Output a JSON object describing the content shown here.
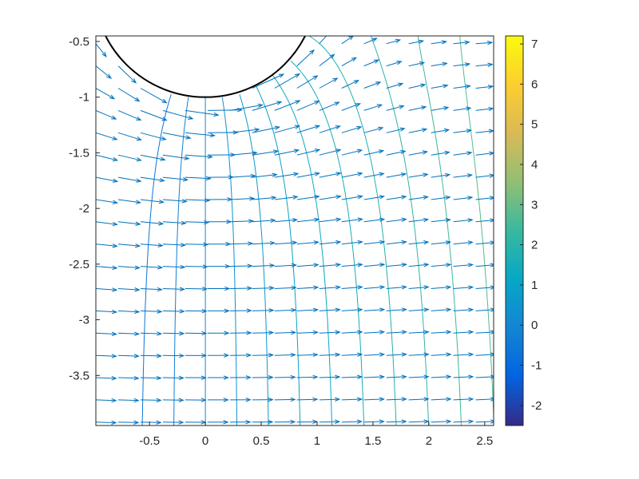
{
  "chart_data": {
    "type": "quiver-contour",
    "title": "",
    "xlabel": "",
    "ylabel": "",
    "xlim": [
      -0.98,
      2.58
    ],
    "ylim": [
      -3.95,
      -0.45
    ],
    "x_ticks": [
      -0.5,
      0,
      0.5,
      1,
      1.5,
      2,
      2.5
    ],
    "x_tick_labels": [
      "-0.5",
      "0",
      "0.5",
      "1",
      "1.5",
      "2",
      "2.5"
    ],
    "y_ticks": [
      -0.5,
      -1,
      -1.5,
      -2,
      -2.5,
      -3,
      -3.5
    ],
    "y_tick_labels": [
      "-0.5",
      "-1",
      "-1.5",
      "-2",
      "-2.5",
      "-3",
      "-3.5"
    ],
    "grid": false,
    "colorbar": {
      "position": "right",
      "range": [
        -2.5,
        7.2
      ],
      "ticks": [
        -2,
        -1,
        0,
        1,
        2,
        3,
        4,
        5,
        6,
        7
      ],
      "tick_labels": [
        "-2",
        "-1",
        "0",
        "1",
        "2",
        "3",
        "4",
        "5",
        "6",
        "7"
      ],
      "colormap": "parula"
    },
    "obstacle": {
      "shape": "circle",
      "center": [
        0,
        0
      ],
      "radius": 1,
      "edge_color": "#000000"
    },
    "contour_levels": [
      -0.6,
      -0.3,
      0.0,
      0.3,
      0.6,
      0.9,
      1.2,
      1.5,
      1.8,
      2.1,
      2.4,
      2.7,
      3.0,
      3.3,
      3.6
    ],
    "quiver": {
      "color": "#0072BD",
      "x_grid": [
        -0.98,
        -0.78,
        -0.58,
        -0.38,
        -0.18,
        0.02,
        0.22,
        0.42,
        0.62,
        0.82,
        1.02,
        1.22,
        1.42,
        1.62,
        1.82,
        2.02,
        2.22,
        2.42
      ],
      "y_grid": [
        -0.52,
        -0.72,
        -0.92,
        -1.12,
        -1.32,
        -1.52,
        -1.72,
        -1.92,
        -2.12,
        -2.32,
        -2.52,
        -2.72,
        -2.92,
        -3.12,
        -3.32,
        -3.52,
        -3.72,
        -3.92
      ],
      "scale": 0.17
    },
    "colors": {
      "axes": "#262626",
      "background": "#ffffff"
    }
  }
}
